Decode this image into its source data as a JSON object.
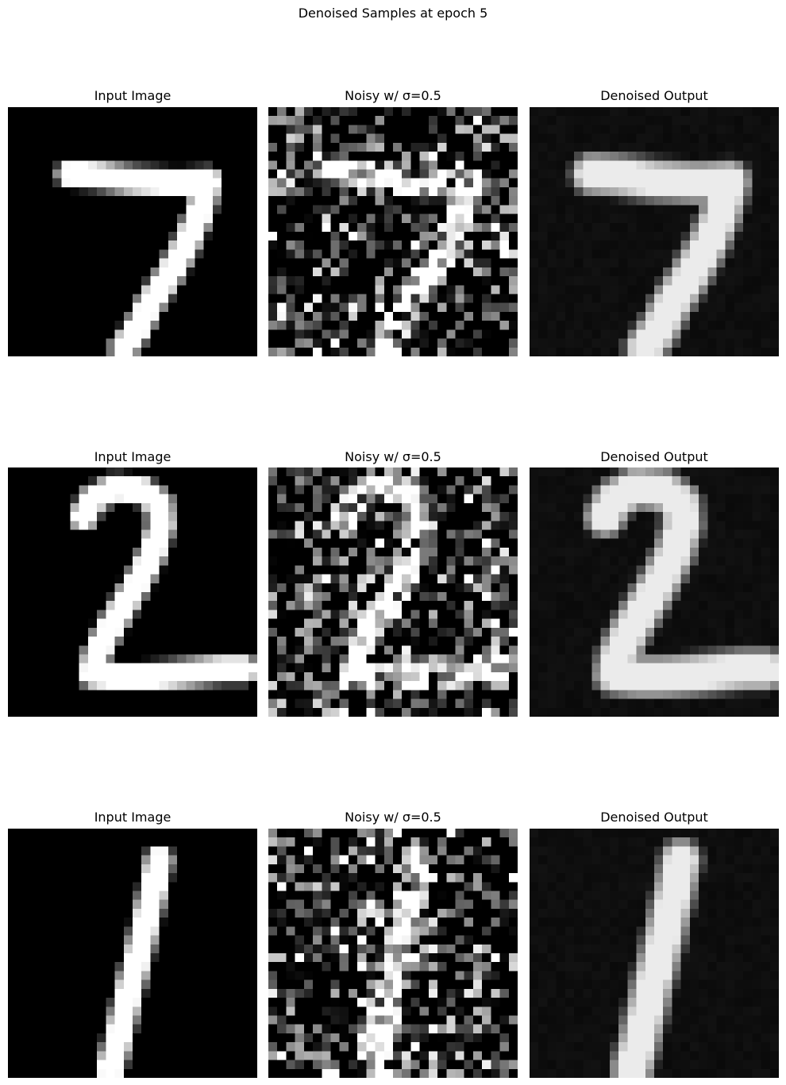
{
  "suptitle": "Denoised Samples at epoch 5",
  "rows": [
    {
      "digit": "7",
      "panels": [
        {
          "title": "Input Image",
          "kind": "clean"
        },
        {
          "title": "Noisy w/ σ=0.5",
          "kind": "noisy"
        },
        {
          "title": "Denoised Output",
          "kind": "denoised"
        }
      ]
    },
    {
      "digit": "2",
      "panels": [
        {
          "title": "Input Image",
          "kind": "clean"
        },
        {
          "title": "Noisy w/ σ=0.5",
          "kind": "noisy"
        },
        {
          "title": "Denoised Output",
          "kind": "denoised"
        }
      ]
    },
    {
      "digit": "1",
      "panels": [
        {
          "title": "Input Image",
          "kind": "clean"
        },
        {
          "title": "Noisy w/ σ=0.5",
          "kind": "noisy"
        },
        {
          "title": "Denoised Output",
          "kind": "denoised"
        }
      ]
    }
  ],
  "noise_sigma": 0.5,
  "colormap": "gray"
}
